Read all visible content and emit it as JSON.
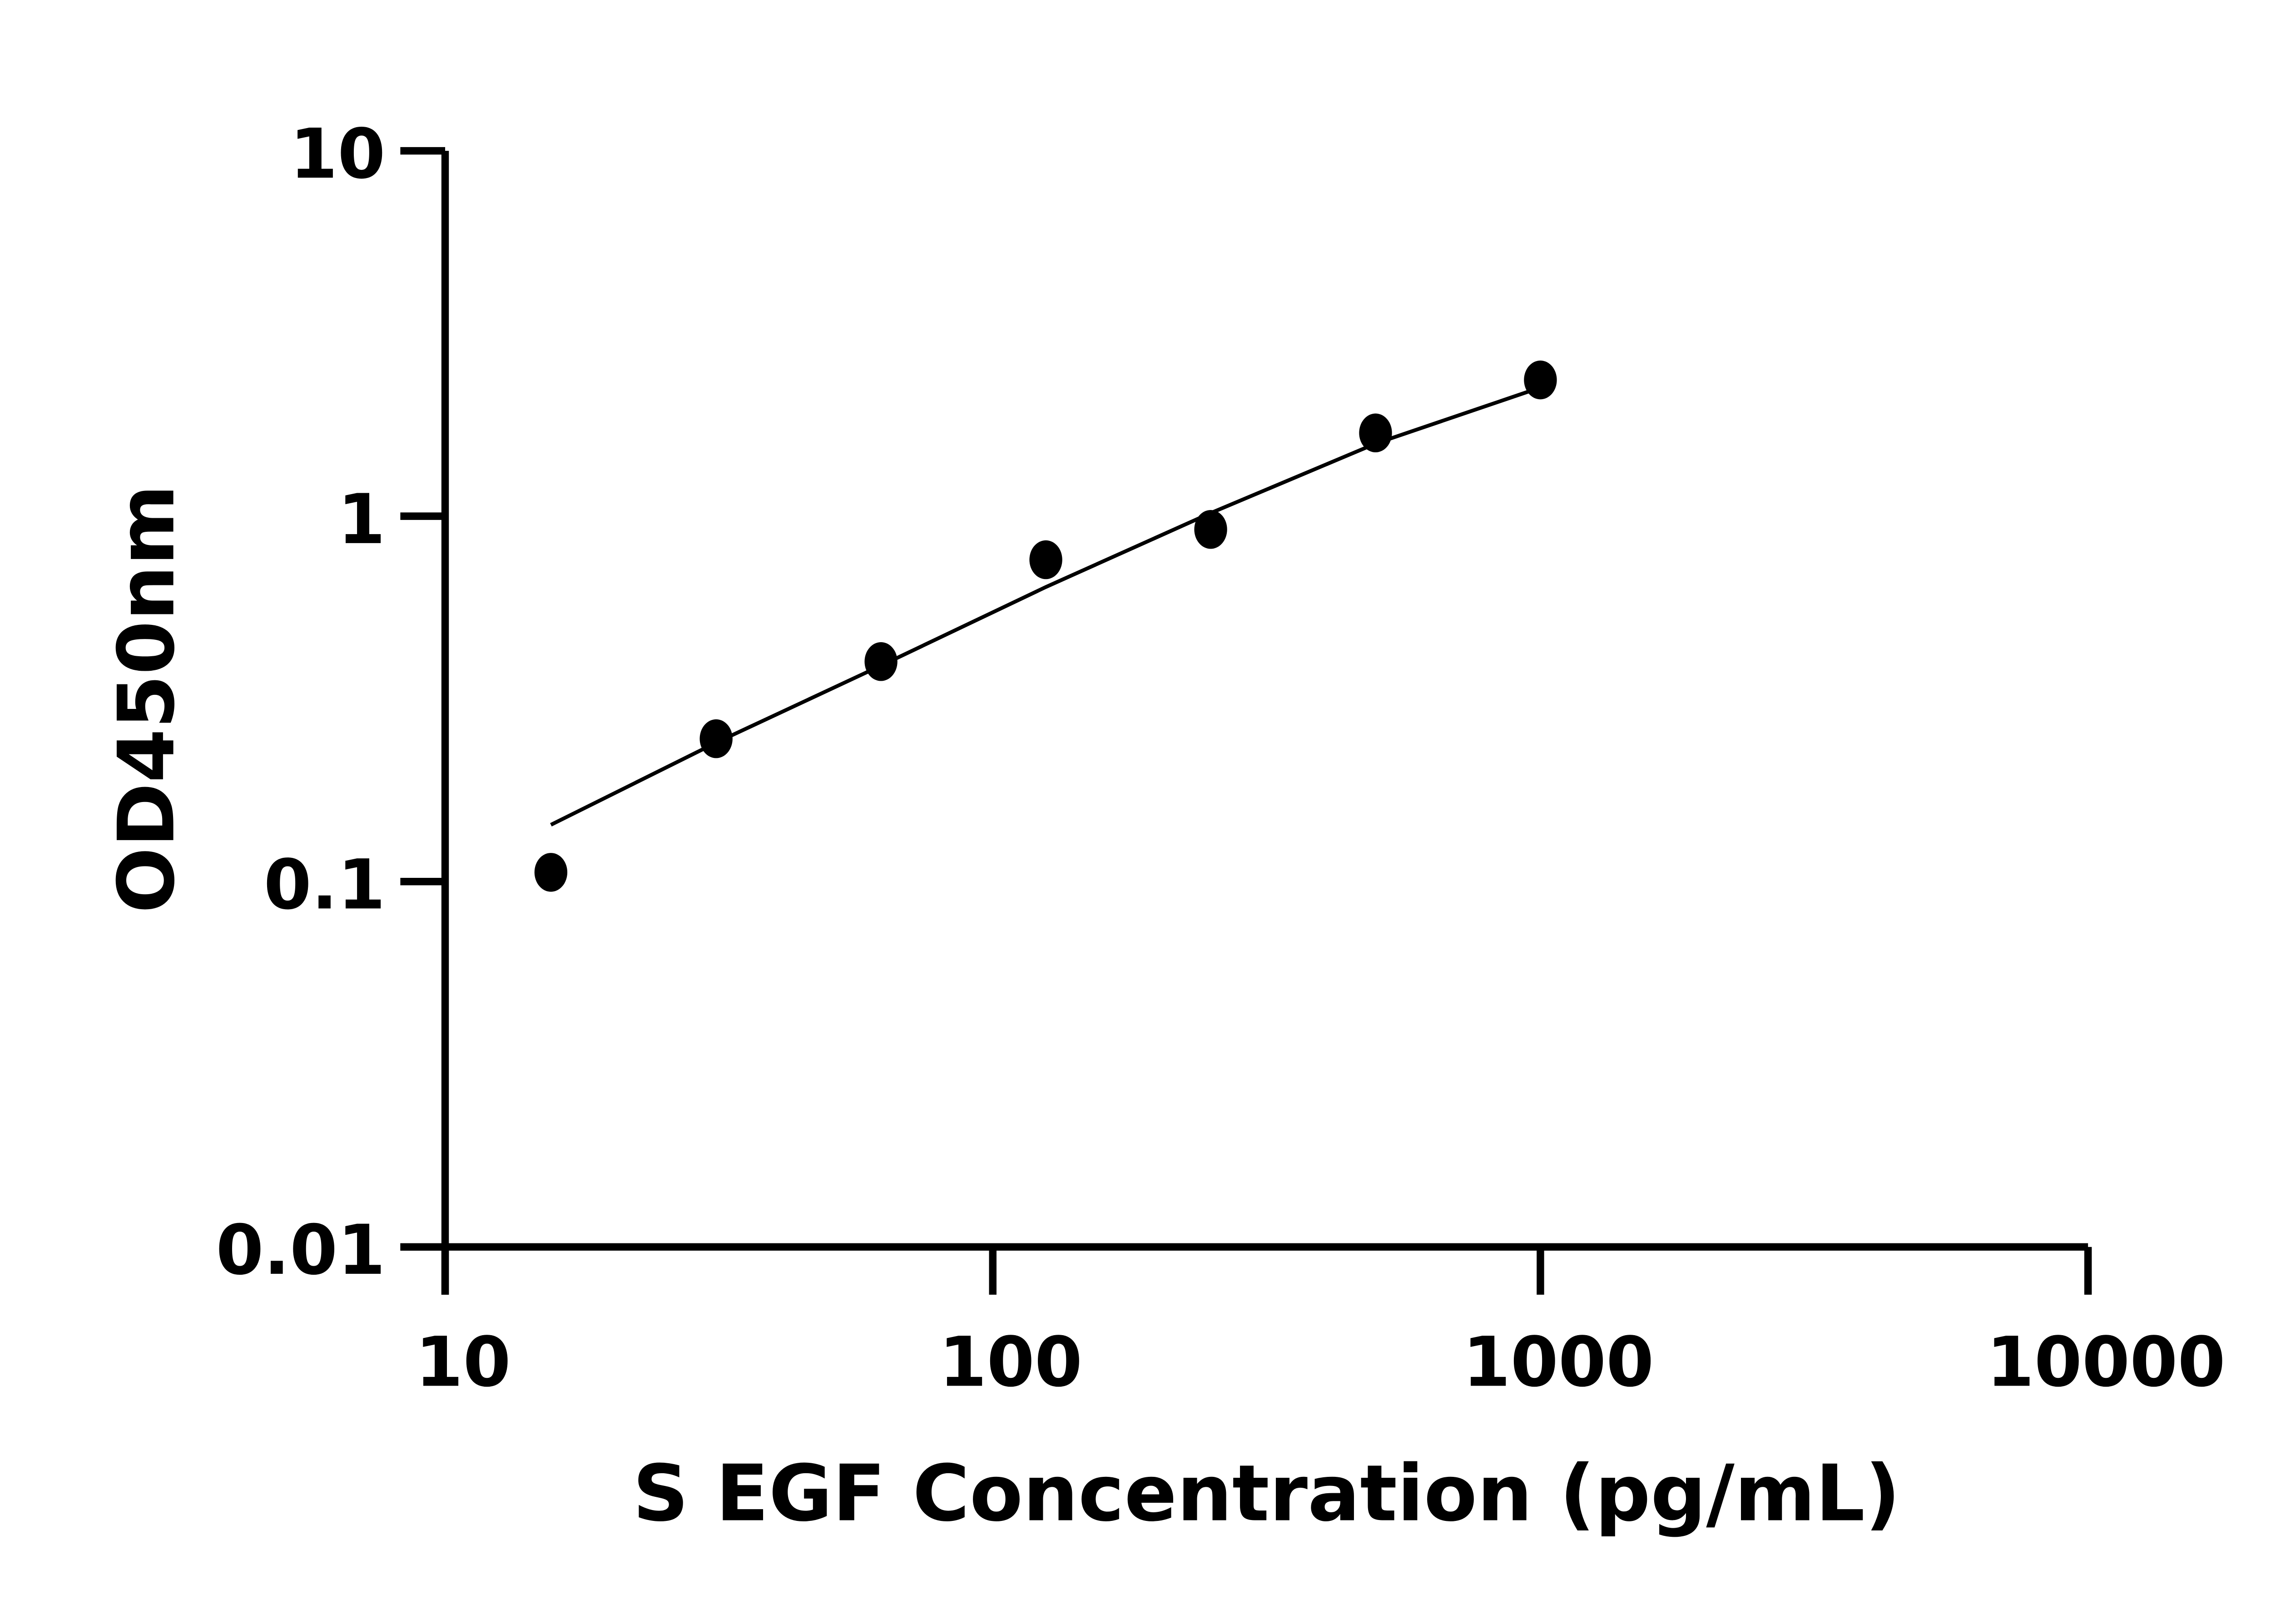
{
  "chart_data": {
    "type": "scatter",
    "title": "",
    "xlabel": "S EGF Concentration (pg/mL)",
    "ylabel": "OD450nm",
    "x_scale": "log",
    "y_scale": "log",
    "xlim": [
      10,
      10000
    ],
    "ylim": [
      0.01,
      10
    ],
    "x_ticks": [
      10,
      100,
      1000,
      10000
    ],
    "x_tick_labels": [
      "10",
      "100",
      "1000",
      "10000"
    ],
    "y_ticks": [
      0.01,
      0.1,
      1,
      10
    ],
    "y_tick_labels": [
      "0.01",
      "0.1",
      "1",
      "10"
    ],
    "grid": false,
    "series": [
      {
        "x": [
          15.6,
          31.25,
          62.5,
          125,
          250,
          500,
          1000
        ],
        "y": [
          0.106,
          0.246,
          0.4,
          0.76,
          0.92,
          1.69,
          2.36
        ],
        "marker": "filled-circle",
        "color": "#000000"
      }
    ],
    "fit_curve": {
      "x": [
        15.6,
        31.25,
        62.5,
        125,
        250,
        500,
        1000
      ],
      "y": [
        0.143,
        0.24,
        0.39,
        0.64,
        1.02,
        1.58,
        2.25
      ],
      "color": "#000000"
    }
  }
}
